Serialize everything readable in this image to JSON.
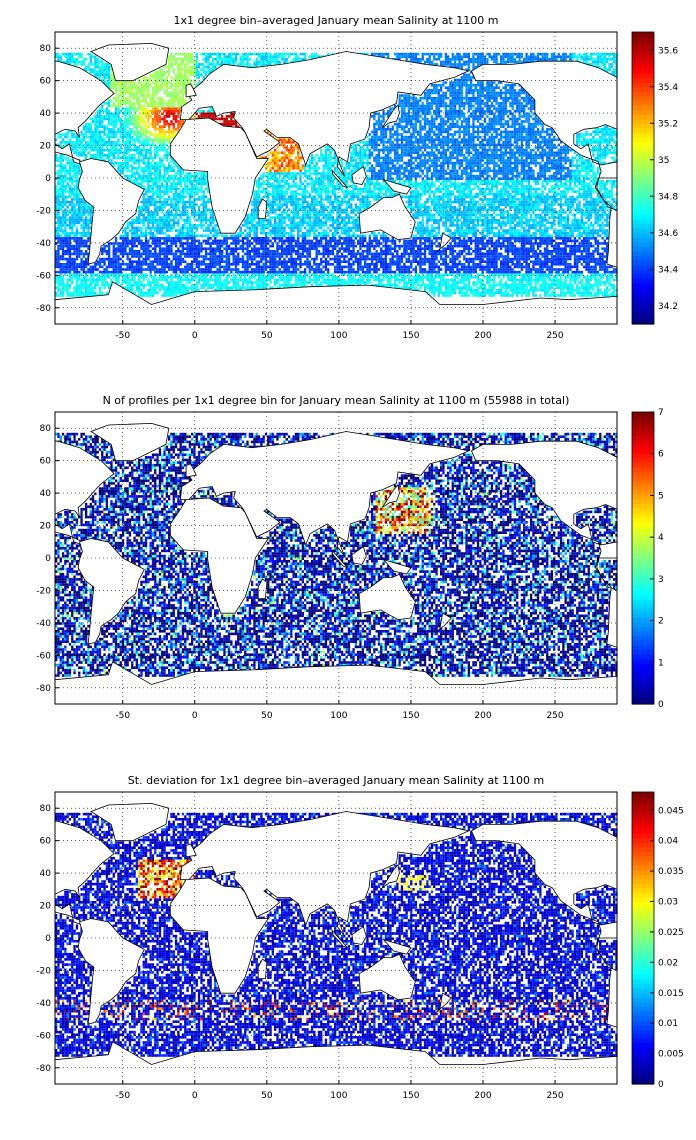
{
  "panels": [
    {
      "title": "1x1 degree bin–averaged January mean Salinity at 1100 m",
      "colorbar": {
        "ticks": [
          "34.2",
          "34.4",
          "34.6",
          "34.8",
          "35",
          "35.2",
          "35.4",
          "35.6"
        ],
        "min": 34.1,
        "max": 35.7
      },
      "field": "salinity"
    },
    {
      "title": "N of profiles per 1x1 degree bin for January mean Salinity at 1100 m (55988 in total)",
      "colorbar": {
        "ticks": [
          "0",
          "1",
          "2",
          "3",
          "4",
          "5",
          "6",
          "7"
        ],
        "min": 0,
        "max": 7
      },
      "field": "count"
    },
    {
      "title": "St. deviation for 1x1 degree bin–averaged January mean Salinity at 1100 m",
      "colorbar": {
        "ticks": [
          "0",
          "0.005",
          "0.01",
          "0.015",
          "0.02",
          "0.025",
          "0.03",
          "0.035",
          "0.04",
          "0.045"
        ],
        "min": 0,
        "max": 0.048
      },
      "field": "std"
    }
  ],
  "axes": {
    "x_ticks": [
      "-50",
      "0",
      "50",
      "100",
      "150",
      "200",
      "250"
    ],
    "y_ticks": [
      "80",
      "60",
      "40",
      "20",
      "0",
      "-20",
      "-40",
      "-60",
      "-80"
    ],
    "xlim": [
      -97,
      293
    ],
    "ylim": [
      -90,
      90
    ],
    "grid": "dotted"
  },
  "colormap": "jet"
}
